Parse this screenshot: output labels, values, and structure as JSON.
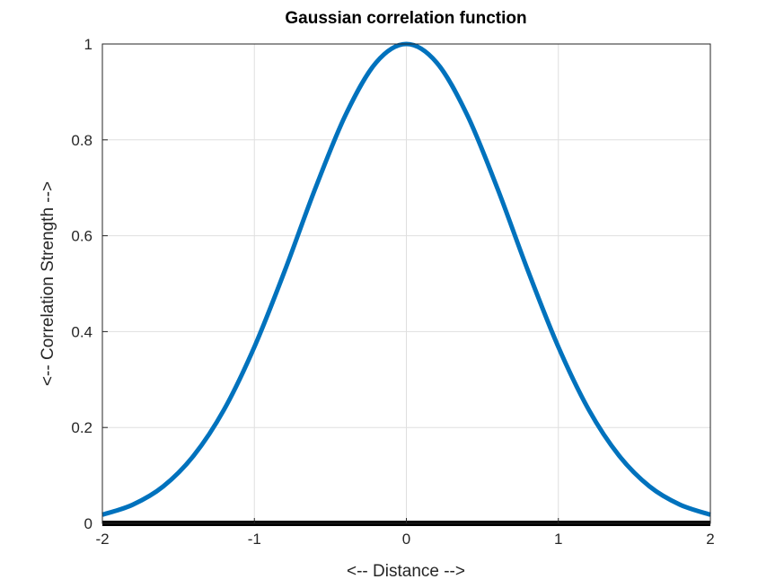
{
  "chart_data": {
    "type": "line",
    "title": "Gaussian correlation function",
    "xlabel": "<-- Distance -->",
    "ylabel": "<-- Correlation Strength -->",
    "xlim": [
      -2,
      2
    ],
    "ylim": [
      0,
      1
    ],
    "xticks": [
      "-2",
      "-1",
      "0",
      "1",
      "2"
    ],
    "yticks": [
      "0",
      "0.2",
      "0.4",
      "0.6",
      "0.8",
      "1"
    ],
    "grid": true,
    "series": [
      {
        "color": "#0072BD",
        "x": [
          -2,
          -1.8,
          -1.6,
          -1.4,
          -1.2,
          -1,
          -0.8,
          -0.6,
          -0.4,
          -0.2,
          0,
          0.2,
          0.4,
          0.6,
          0.8,
          1,
          1.2,
          1.4,
          1.6,
          1.8,
          2
        ],
        "y": [
          0.018,
          0.039,
          0.077,
          0.141,
          0.237,
          0.368,
          0.527,
          0.698,
          0.852,
          0.961,
          1.0,
          0.961,
          0.852,
          0.698,
          0.527,
          0.368,
          0.237,
          0.141,
          0.077,
          0.039,
          0.018
        ]
      },
      {
        "color": "#000000",
        "x": [
          -2,
          2
        ],
        "y": [
          0,
          0
        ]
      }
    ]
  }
}
